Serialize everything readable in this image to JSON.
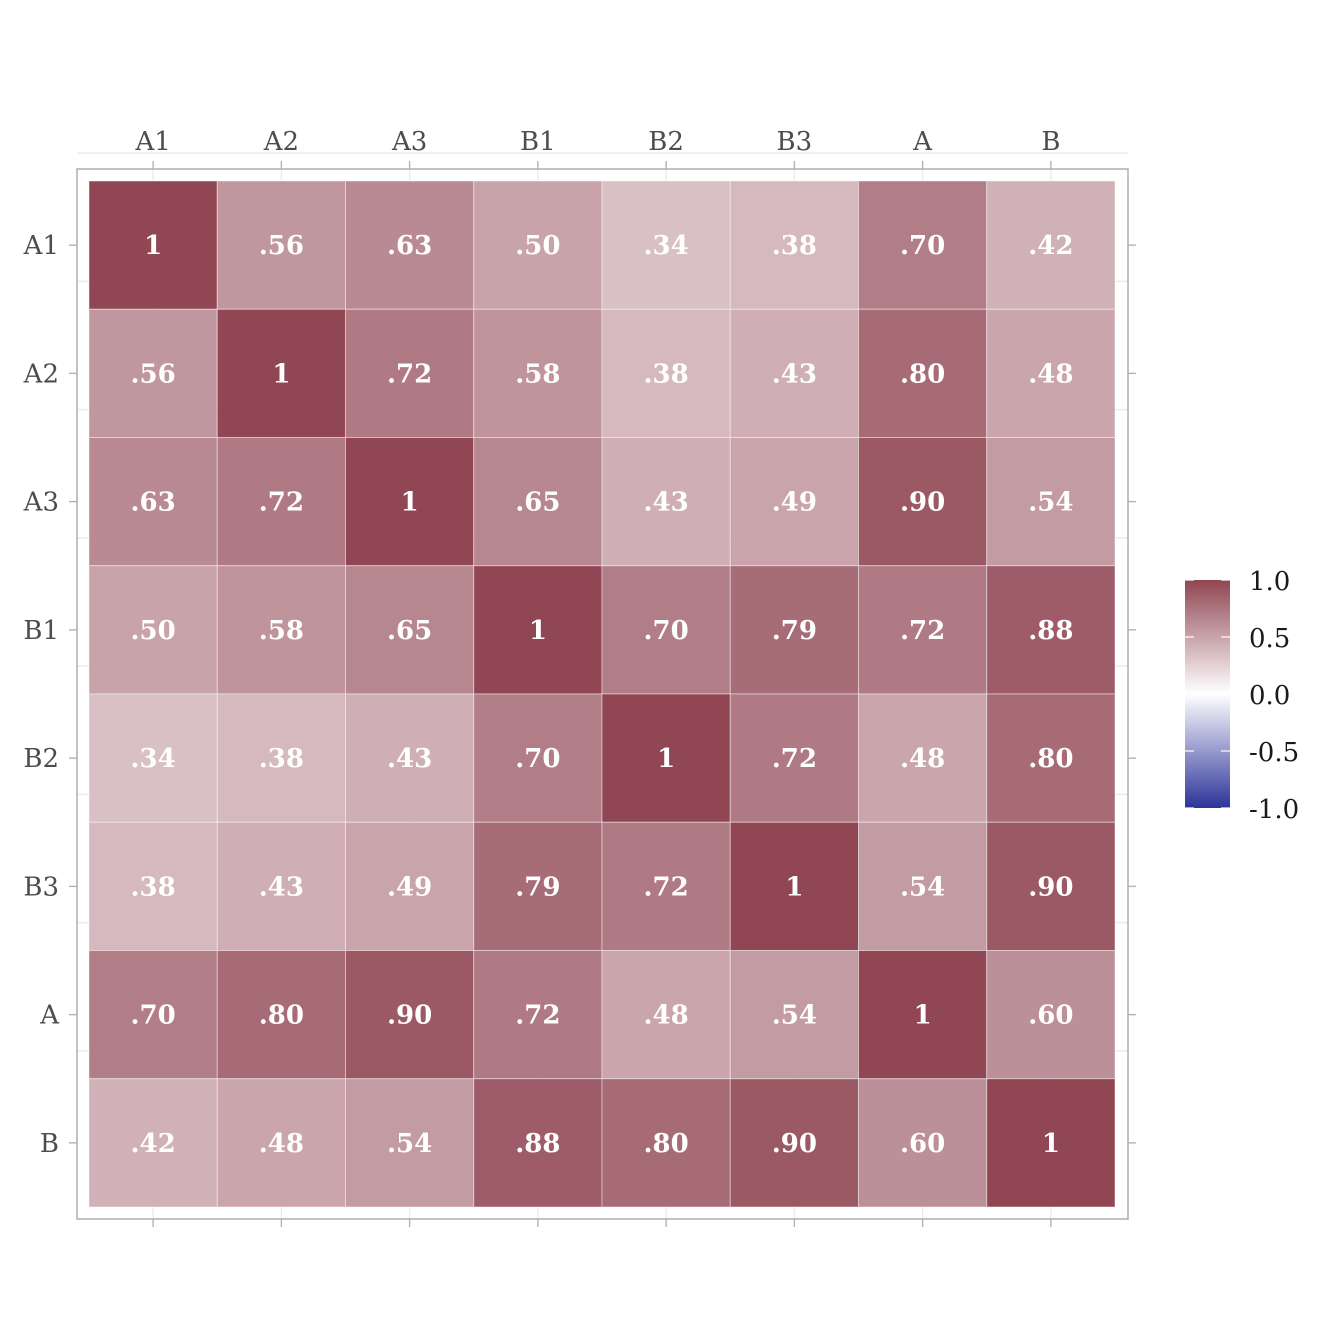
{
  "chart_data": {
    "type": "heatmap",
    "title": "",
    "xlabel": "",
    "ylabel": "",
    "x_labels": [
      "A1",
      "A2",
      "A3",
      "B1",
      "B2",
      "B3",
      "A",
      "B"
    ],
    "y_labels": [
      "A1",
      "A2",
      "A3",
      "B1",
      "B2",
      "B3",
      "A",
      "B"
    ],
    "x_axis_position": "top",
    "values": [
      [
        1,
        0.56,
        0.63,
        0.5,
        0.34,
        0.38,
        0.7,
        0.42
      ],
      [
        0.56,
        1,
        0.72,
        0.58,
        0.38,
        0.43,
        0.8,
        0.48
      ],
      [
        0.63,
        0.72,
        1,
        0.65,
        0.43,
        0.49,
        0.9,
        0.54
      ],
      [
        0.5,
        0.58,
        0.65,
        1,
        0.7,
        0.79,
        0.72,
        0.88
      ],
      [
        0.34,
        0.38,
        0.43,
        0.7,
        1,
        0.72,
        0.48,
        0.8
      ],
      [
        0.38,
        0.43,
        0.49,
        0.79,
        0.72,
        1,
        0.54,
        0.9
      ],
      [
        0.7,
        0.8,
        0.9,
        0.72,
        0.48,
        0.54,
        1,
        0.6
      ],
      [
        0.42,
        0.48,
        0.54,
        0.88,
        0.8,
        0.9,
        0.6,
        1
      ]
    ],
    "cell_labels": [
      [
        "1",
        ".56",
        ".63",
        ".50",
        ".34",
        ".38",
        ".70",
        ".42"
      ],
      [
        ".56",
        "1",
        ".72",
        ".58",
        ".38",
        ".43",
        ".80",
        ".48"
      ],
      [
        ".63",
        ".72",
        "1",
        ".65",
        ".43",
        ".49",
        ".90",
        ".54"
      ],
      [
        ".50",
        ".58",
        ".65",
        "1",
        ".70",
        ".79",
        ".72",
        ".88"
      ],
      [
        ".34",
        ".38",
        ".43",
        ".70",
        "1",
        ".72",
        ".48",
        ".80"
      ],
      [
        ".38",
        ".43",
        ".49",
        ".79",
        ".72",
        "1",
        ".54",
        ".90"
      ],
      [
        ".70",
        ".80",
        ".90",
        ".72",
        ".48",
        ".54",
        "1",
        ".60"
      ],
      [
        ".42",
        ".48",
        ".54",
        ".88",
        ".80",
        ".90",
        ".60",
        "1"
      ]
    ],
    "color_scale": {
      "low": "#2c3399",
      "mid": "#ffffff",
      "high": "#904653",
      "limits": [
        -1,
        1
      ]
    },
    "legend": {
      "position": "right",
      "ticks": [
        1.0,
        0.5,
        0.0,
        -0.5,
        -1.0
      ],
      "tick_labels": [
        "1.0",
        "0.5",
        "0.0",
        "-0.5",
        "-1.0"
      ]
    },
    "grid": true
  }
}
